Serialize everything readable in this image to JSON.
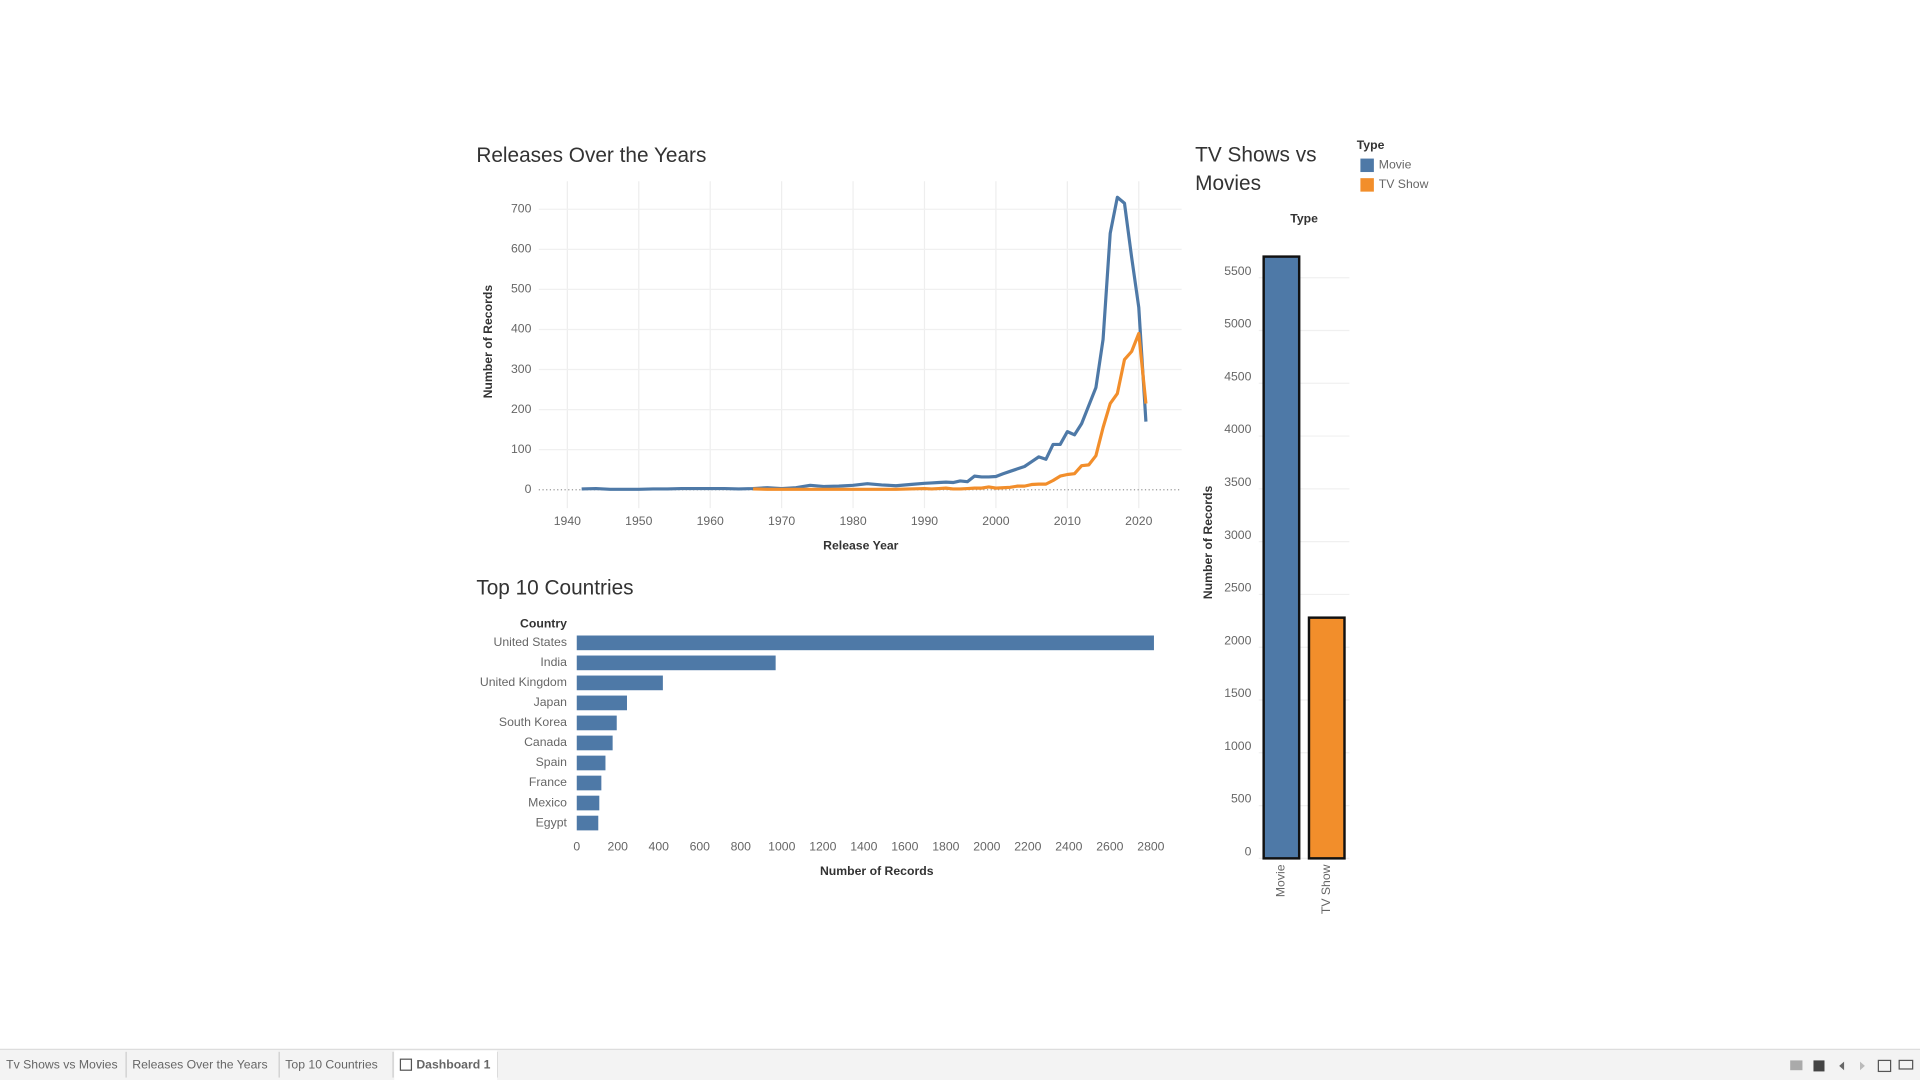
{
  "chart_data": [
    {
      "type": "line",
      "title": "Releases Over the Years",
      "x_label": "Release Year",
      "y_label": "Number of Records",
      "x": [
        1942,
        1944,
        1946,
        1948,
        1950,
        1952,
        1954,
        1956,
        1958,
        1960,
        1962,
        1964,
        1966,
        1968,
        1970,
        1972,
        1974,
        1976,
        1978,
        1980,
        1982,
        1984,
        1986,
        1988,
        1990,
        1991,
        1992,
        1993,
        1994,
        1995,
        1996,
        1997,
        1998,
        1999,
        2000,
        2001,
        2002,
        2003,
        2004,
        2005,
        2006,
        2007,
        2008,
        2009,
        2010,
        2011,
        2012,
        2013,
        2014,
        2015,
        2016,
        2017,
        2018,
        2019,
        2020,
        2021
      ],
      "series": [
        {
          "name": "Movie",
          "color": "#4e79a7",
          "values": [
            2,
            3,
            1,
            1,
            1,
            2,
            2,
            3,
            3,
            3,
            3,
            2,
            3,
            5,
            3,
            5,
            11,
            8,
            9,
            11,
            15,
            12,
            10,
            13,
            16,
            17,
            18,
            19,
            18,
            22,
            20,
            34,
            32,
            32,
            33,
            40,
            46,
            52,
            58,
            70,
            82,
            76,
            113,
            113,
            145,
            137,
            165,
            210,
            255,
            375,
            640,
            730,
            715,
            580,
            455,
            170
          ]
        },
        {
          "name": "TV Show",
          "color": "#f28e2b",
          "values": [
            null,
            null,
            null,
            null,
            null,
            null,
            null,
            null,
            null,
            null,
            null,
            null,
            2,
            1,
            1,
            1,
            1,
            1,
            1,
            1,
            1,
            1,
            1,
            2,
            3,
            2,
            3,
            4,
            2,
            2,
            3,
            4,
            4,
            7,
            4,
            5,
            6,
            9,
            9,
            13,
            14,
            14,
            23,
            34,
            38,
            40,
            60,
            62,
            85,
            155,
            215,
            240,
            325,
            345,
            390,
            215
          ]
        }
      ],
      "xlim": [
        1936,
        2026
      ],
      "xticks": [
        1940,
        1950,
        1960,
        1970,
        1980,
        1990,
        2000,
        2010,
        2020
      ],
      "ylim": [
        -46,
        770
      ],
      "yticks": [
        0,
        100,
        200,
        300,
        400,
        500,
        600,
        700
      ],
      "grid": true
    },
    {
      "type": "bar",
      "orientation": "horizontal",
      "title": "Top 10 Countries",
      "category_label": "Country",
      "x_label": "Number of Records",
      "categories": [
        "United States",
        "India",
        "United Kingdom",
        "Japan",
        "South Korea",
        "Canada",
        "Spain",
        "France",
        "Mexico",
        "Egypt"
      ],
      "values": [
        2815,
        970,
        420,
        245,
        195,
        175,
        140,
        120,
        110,
        105
      ],
      "color": "#4e79a7",
      "xlim": [
        -18,
        2950
      ],
      "xticks": [
        0,
        200,
        400,
        600,
        800,
        1000,
        1200,
        1400,
        1600,
        1800,
        2000,
        2200,
        2400,
        2600,
        2800
      ],
      "grid": false
    },
    {
      "type": "bar",
      "orientation": "vertical",
      "title": "TV Shows vs Movies",
      "x_label": "Type",
      "y_label": "Number of Records",
      "legend_title": "Type",
      "categories": [
        "Movie",
        "TV Show"
      ],
      "values": [
        5700,
        2280
      ],
      "colors": [
        "#4e79a7",
        "#f28e2b"
      ],
      "ylim": [
        0,
        5950
      ],
      "yticks": [
        0,
        500,
        1000,
        1500,
        2000,
        2500,
        3000,
        3500,
        4000,
        4500,
        5000,
        5500
      ],
      "grid": true,
      "legend": "top-right"
    }
  ],
  "tabs": [
    {
      "label": "Tv Shows vs Movies"
    },
    {
      "label": "Releases Over the Years"
    },
    {
      "label": "Top 10 Countries"
    },
    {
      "label": "Dashboard 1",
      "active": true
    }
  ]
}
